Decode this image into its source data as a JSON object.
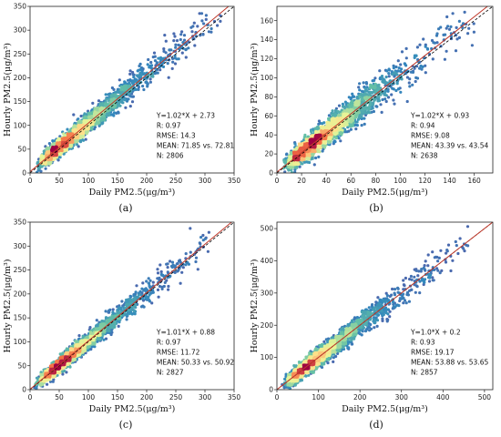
{
  "chart_data": [
    {
      "type": "scatter",
      "panel_label": "(a)",
      "xlabel": "Daily PM2.5(μg/m³)",
      "ylabel": "Hourly PM2.5(μg/m³)",
      "xlim": [
        0,
        350
      ],
      "ylim": [
        0,
        350
      ],
      "xticks": [
        0,
        50,
        100,
        150,
        200,
        250,
        300,
        350
      ],
      "yticks": [
        0,
        50,
        100,
        150,
        200,
        250,
        300,
        350
      ],
      "fit": {
        "slope": 1.02,
        "intercept": 2.73
      },
      "stats": [
        "Y=1.02*X + 2.73",
        "R: 0.97",
        "RMSE: 14.3",
        "MEAN: 71.85 vs. 72.81",
        "N: 2806"
      ],
      "n": 2806,
      "max_x": 330,
      "spread": 13,
      "seed": 11
    },
    {
      "type": "scatter",
      "panel_label": "(b)",
      "xlabel": "Daily PM2.5(μg/m³)",
      "ylabel": "Hourly PM2.5(μg/m³)",
      "xlim": [
        0,
        175
      ],
      "ylim": [
        0,
        175
      ],
      "xticks": [
        0,
        20,
        40,
        60,
        80,
        100,
        120,
        140,
        160
      ],
      "yticks": [
        0,
        20,
        40,
        60,
        80,
        100,
        120,
        140,
        160
      ],
      "fit": {
        "slope": 1.02,
        "intercept": 0.93
      },
      "stats": [
        "Y=1.02*X + 0.93",
        "R: 0.94",
        "RMSE: 9.08",
        "MEAN: 43.39 vs. 43.54",
        "N: 2638"
      ],
      "n": 2638,
      "max_x": 160,
      "spread": 8.5,
      "seed": 23
    },
    {
      "type": "scatter",
      "panel_label": "(c)",
      "xlabel": "Daily PM2.5(μg/m³)",
      "ylabel": "Hourly PM2.5(μg/m³)",
      "xlim": [
        0,
        350
      ],
      "ylim": [
        0,
        350
      ],
      "xticks": [
        0,
        50,
        100,
        150,
        200,
        250,
        300,
        350
      ],
      "yticks": [
        0,
        50,
        100,
        150,
        200,
        250,
        300,
        350
      ],
      "fit": {
        "slope": 1.01,
        "intercept": 0.88
      },
      "stats": [
        "Y=1.01*X + 0.88",
        "R: 0.97",
        "RMSE: 11.72",
        "MEAN: 50.33 vs. 50.92",
        "N: 2827"
      ],
      "n": 2827,
      "max_x": 310,
      "spread": 11,
      "seed": 37
    },
    {
      "type": "scatter",
      "panel_label": "(d)",
      "xlabel": "Daily PM2.5(μg/m³)",
      "ylabel": "Hourly PM2.5(μg/m³)",
      "xlim": [
        0,
        520
      ],
      "ylim": [
        0,
        520
      ],
      "xticks": [
        0,
        100,
        200,
        300,
        400,
        500
      ],
      "yticks": [
        0,
        100,
        200,
        300,
        400,
        500
      ],
      "fit": {
        "slope": 1.0,
        "intercept": 0.2
      },
      "stats": [
        "Y=1.0*X + 0.2",
        "R: 0.93",
        "RMSE: 19.17",
        "MEAN: 53.88 vs. 53.65",
        "N: 2857"
      ],
      "n": 2857,
      "max_x": 460,
      "spread": 19,
      "seed": 53
    }
  ],
  "colors": {
    "density_low": "#5e4fa2",
    "density_mid": "#66c2a5",
    "density_high": "#fee08b",
    "density_peak": "#d53e4f",
    "fit_line": "#c0392b",
    "identity_line": "#000000"
  }
}
